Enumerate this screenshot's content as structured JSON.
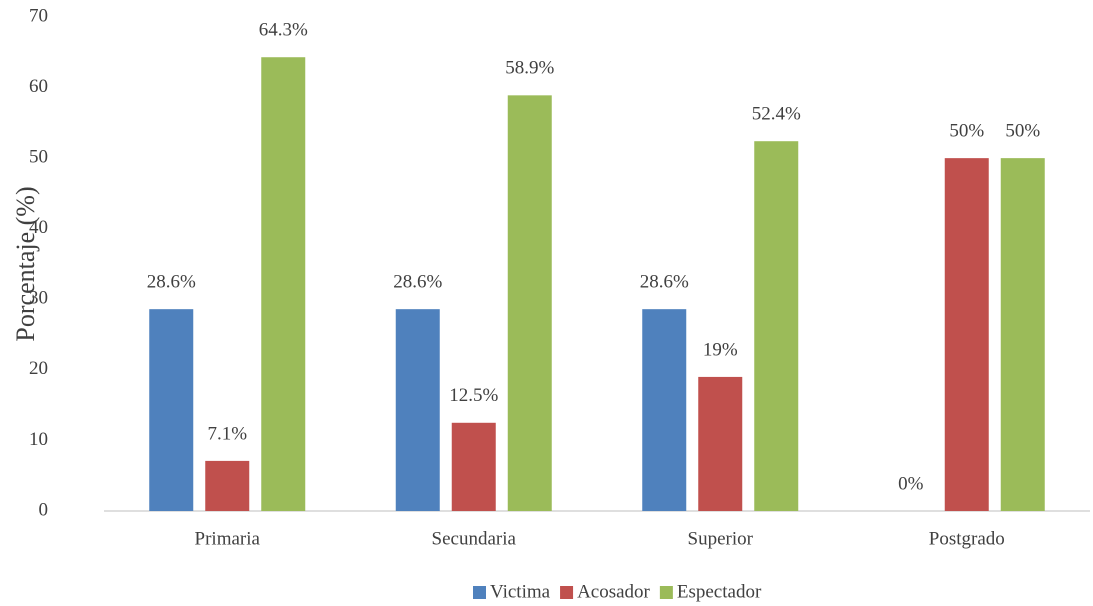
{
  "chart_data": {
    "type": "bar",
    "y_label": "Porcentaje (%)",
    "categories": [
      "Primaria",
      "Secundaria",
      "Superior",
      "Postgrado"
    ],
    "series": [
      {
        "name": "Victima",
        "color": "#4f81bd",
        "values": [
          28.6,
          28.6,
          28.6,
          0
        ],
        "value_labels": [
          "28.6%",
          "28.6%",
          "28.6%",
          "0%"
        ]
      },
      {
        "name": "Acosador",
        "color": "#c0504d",
        "values": [
          7.1,
          12.5,
          19,
          50
        ],
        "value_labels": [
          "7.1%",
          "12.5%",
          "19%",
          "50%"
        ]
      },
      {
        "name": "Espectador",
        "color": "#9bbb59",
        "values": [
          64.3,
          58.9,
          52.4,
          50
        ],
        "value_labels": [
          "64.3%",
          "58.9%",
          "52.4%",
          "50%"
        ]
      }
    ],
    "ylim": [
      0,
      70
    ],
    "yticks": [
      0,
      10,
      20,
      30,
      40,
      50,
      60,
      70
    ],
    "grid": false,
    "legend": "bottom"
  }
}
